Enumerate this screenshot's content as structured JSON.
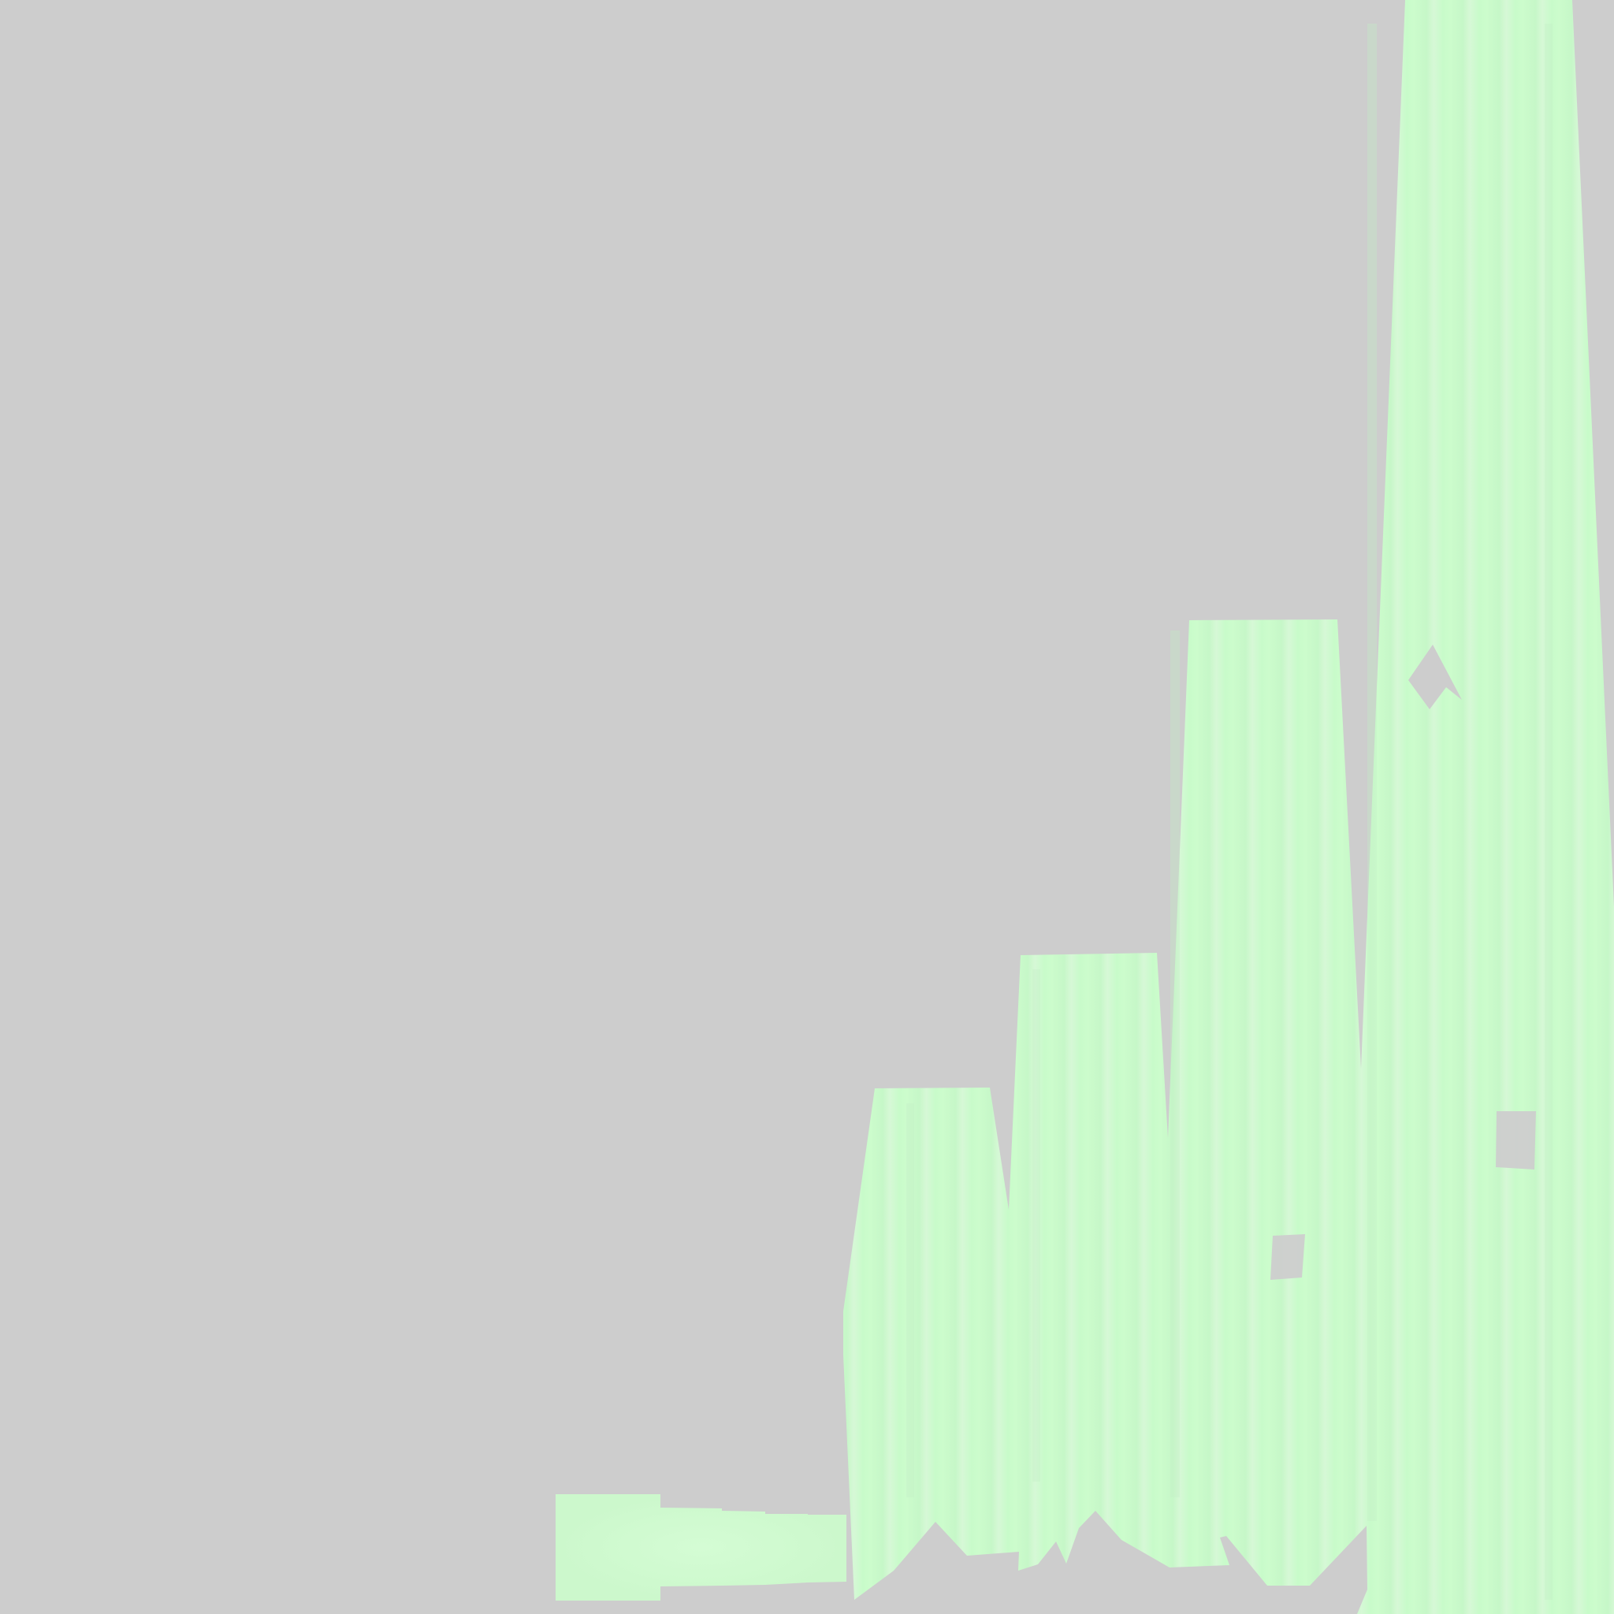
{
  "palette": {
    "background": "#cdcdcd",
    "shape_fill": "#ccfccc",
    "shape_fill_light": "#d4f8d4",
    "shape_streak": "#c2f5c4",
    "hole": "#cdcdcd"
  }
}
